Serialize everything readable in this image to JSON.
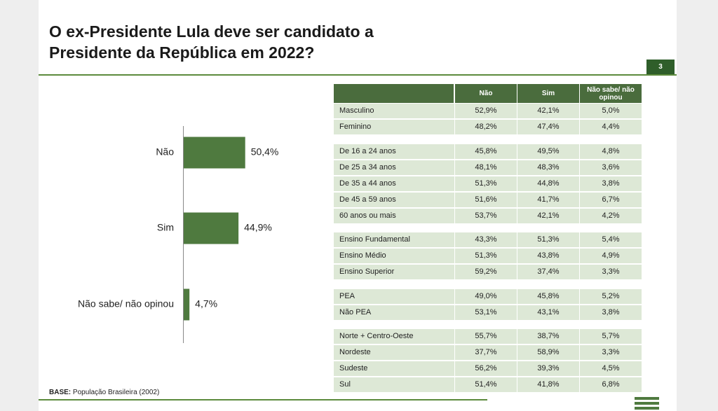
{
  "title": "O ex-Presidente Lula deve ser candidato a Presidente da República em 2022?",
  "page_number": "3",
  "chart_data": {
    "type": "bar",
    "orientation": "horizontal",
    "categories": [
      "Não",
      "Sim",
      "Não sabe/ não opinou"
    ],
    "values": [
      50.4,
      44.9,
      4.7
    ],
    "value_labels": [
      "50,4%",
      "44,9%",
      "4,7%"
    ],
    "color": "#4f7a3f"
  },
  "table": {
    "header": [
      "Não",
      "Sim",
      "Não sabe/ não opinou"
    ],
    "groups": [
      [
        [
          "Masculino",
          "52,9%",
          "42,1%",
          "5,0%"
        ],
        [
          "Feminino",
          "48,2%",
          "47,4%",
          "4,4%"
        ]
      ],
      [
        [
          "De 16 a 24 anos",
          "45,8%",
          "49,5%",
          "4,8%"
        ],
        [
          "De 25 a 34 anos",
          "48,1%",
          "48,3%",
          "3,6%"
        ],
        [
          "De 35 a 44 anos",
          "51,3%",
          "44,8%",
          "3,8%"
        ],
        [
          "De 45 a 59 anos",
          "51,6%",
          "41,7%",
          "6,7%"
        ],
        [
          "60 anos ou mais",
          "53,7%",
          "42,1%",
          "4,2%"
        ]
      ],
      [
        [
          "Ensino Fundamental",
          "43,3%",
          "51,3%",
          "5,4%"
        ],
        [
          "Ensino Médio",
          "51,3%",
          "43,8%",
          "4,9%"
        ],
        [
          "Ensino Superior",
          "59,2%",
          "37,4%",
          "3,3%"
        ]
      ],
      [
        [
          "PEA",
          "49,0%",
          "45,8%",
          "5,2%"
        ],
        [
          "Não PEA",
          "53,1%",
          "43,1%",
          "3,8%"
        ]
      ],
      [
        [
          "Norte + Centro-Oeste",
          "55,7%",
          "38,7%",
          "5,7%"
        ],
        [
          "Nordeste",
          "37,7%",
          "58,9%",
          "3,3%"
        ],
        [
          "Sudeste",
          "56,2%",
          "39,3%",
          "4,5%"
        ],
        [
          "Sul",
          "51,4%",
          "41,8%",
          "6,8%"
        ]
      ]
    ]
  },
  "base_label": "BASE:",
  "base_text": "População Brasileira (2002)"
}
